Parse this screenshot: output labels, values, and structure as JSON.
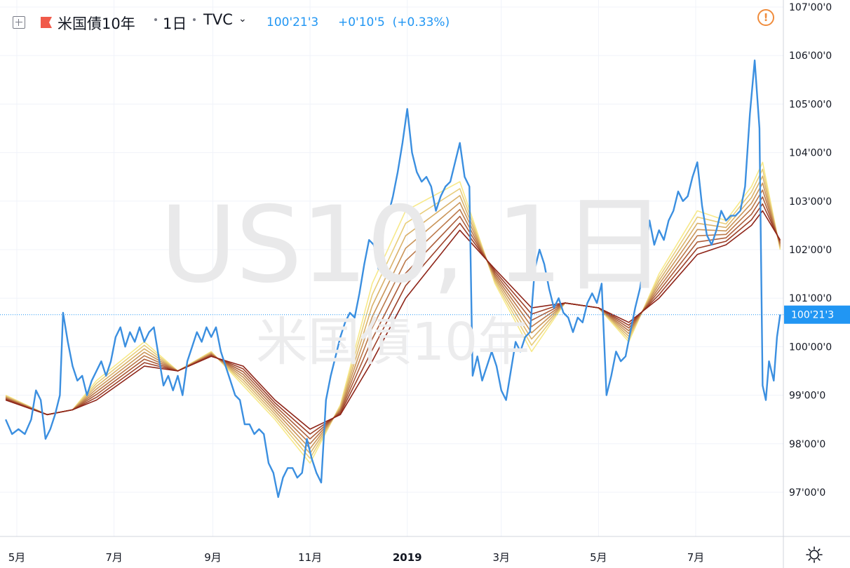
{
  "header": {
    "symbol_name": "米国債10年",
    "interval": "1日",
    "source": "TVC",
    "last_price": "100'21'3",
    "change": "+0'10'5",
    "change_pct": "(+0.33%)"
  },
  "watermark": {
    "line1": "US10, 1日",
    "line2": "米国債10年"
  },
  "colors": {
    "price_line": "#3b8fe0",
    "ribbon_outer": "#f7e98a",
    "ribbon_inner": "#8e2418",
    "alert": "#f08c3c",
    "crosshair": "#2196f3"
  },
  "icons": [
    "add-symbol-icon",
    "flag-icon",
    "chevron-down-icon",
    "alert-icon",
    "settings-gear-icon"
  ],
  "chart_data": {
    "type": "line",
    "title": "米国債10年, 1日",
    "y_axis": {
      "range": [
        96.0,
        107.0
      ],
      "ticks": [
        "107'00'0",
        "106'00'0",
        "105'00'0",
        "104'00'0",
        "103'00'0",
        "102'00'0",
        "101'00'0",
        "100'00'0",
        "99'00'0",
        "98'00'0",
        "97'00'0"
      ],
      "tick_values": [
        107,
        106,
        105,
        104,
        103,
        102,
        101,
        100,
        99,
        98,
        97
      ]
    },
    "x_axis": {
      "ticks": [
        "5月",
        "7月",
        "9月",
        "11月",
        "2019",
        "3月",
        "5月",
        "7月"
      ],
      "tick_dates": [
        "2018-05-01",
        "2018-07-01",
        "2018-09-01",
        "2018-11-01",
        "2019-01-01",
        "2019-03-01",
        "2019-05-01",
        "2019-07-01"
      ],
      "range": [
        "2018-04-24",
        "2019-08-23"
      ]
    },
    "last_price_label": "100'21'3",
    "last_price_value": 100.66,
    "series": [
      {
        "kind": "price",
        "points": [
          [
            "2018-04-24",
            98.5
          ],
          [
            "2018-04-28",
            98.2
          ],
          [
            "2018-05-02",
            98.3
          ],
          [
            "2018-05-06",
            98.2
          ],
          [
            "2018-05-10",
            98.5
          ],
          [
            "2018-05-13",
            99.1
          ],
          [
            "2018-05-16",
            98.9
          ],
          [
            "2018-05-19",
            98.1
          ],
          [
            "2018-05-22",
            98.3
          ],
          [
            "2018-05-25",
            98.6
          ],
          [
            "2018-05-28",
            99.0
          ],
          [
            "2018-05-30",
            100.7
          ],
          [
            "2018-06-02",
            100.1
          ],
          [
            "2018-06-05",
            99.6
          ],
          [
            "2018-06-08",
            99.3
          ],
          [
            "2018-06-11",
            99.4
          ],
          [
            "2018-06-14",
            99.0
          ],
          [
            "2018-06-17",
            99.3
          ],
          [
            "2018-06-20",
            99.5
          ],
          [
            "2018-06-23",
            99.7
          ],
          [
            "2018-06-26",
            99.4
          ],
          [
            "2018-06-29",
            99.7
          ],
          [
            "2018-07-02",
            100.2
          ],
          [
            "2018-07-05",
            100.4
          ],
          [
            "2018-07-08",
            100.0
          ],
          [
            "2018-07-11",
            100.3
          ],
          [
            "2018-07-14",
            100.1
          ],
          [
            "2018-07-17",
            100.4
          ],
          [
            "2018-07-20",
            100.1
          ],
          [
            "2018-07-23",
            100.3
          ],
          [
            "2018-07-26",
            100.4
          ],
          [
            "2018-07-29",
            99.8
          ],
          [
            "2018-08-01",
            99.2
          ],
          [
            "2018-08-04",
            99.4
          ],
          [
            "2018-08-07",
            99.1
          ],
          [
            "2018-08-10",
            99.4
          ],
          [
            "2018-08-13",
            99.0
          ],
          [
            "2018-08-16",
            99.7
          ],
          [
            "2018-08-19",
            100.0
          ],
          [
            "2018-08-22",
            100.3
          ],
          [
            "2018-08-25",
            100.1
          ],
          [
            "2018-08-28",
            100.4
          ],
          [
            "2018-08-31",
            100.2
          ],
          [
            "2018-09-03",
            100.4
          ],
          [
            "2018-09-06",
            99.9
          ],
          [
            "2018-09-09",
            99.6
          ],
          [
            "2018-09-12",
            99.3
          ],
          [
            "2018-09-15",
            99.0
          ],
          [
            "2018-09-18",
            98.9
          ],
          [
            "2018-09-21",
            98.4
          ],
          [
            "2018-09-24",
            98.4
          ],
          [
            "2018-09-27",
            98.2
          ],
          [
            "2018-09-30",
            98.3
          ],
          [
            "2018-10-03",
            98.2
          ],
          [
            "2018-10-06",
            97.6
          ],
          [
            "2018-10-09",
            97.4
          ],
          [
            "2018-10-12",
            96.9
          ],
          [
            "2018-10-15",
            97.3
          ],
          [
            "2018-10-18",
            97.5
          ],
          [
            "2018-10-21",
            97.5
          ],
          [
            "2018-10-24",
            97.3
          ],
          [
            "2018-10-27",
            97.4
          ],
          [
            "2018-10-30",
            98.1
          ],
          [
            "2018-11-02",
            97.7
          ],
          [
            "2018-11-05",
            97.4
          ],
          [
            "2018-11-08",
            97.2
          ],
          [
            "2018-11-11",
            98.9
          ],
          [
            "2018-11-14",
            99.4
          ],
          [
            "2018-11-17",
            99.8
          ],
          [
            "2018-11-20",
            100.2
          ],
          [
            "2018-11-23",
            100.5
          ],
          [
            "2018-11-26",
            100.7
          ],
          [
            "2018-11-29",
            100.6
          ],
          [
            "2018-12-02",
            101.1
          ],
          [
            "2018-12-05",
            101.7
          ],
          [
            "2018-12-08",
            102.2
          ],
          [
            "2018-12-11",
            102.1
          ],
          [
            "2018-12-14",
            101.6
          ],
          [
            "2018-12-17",
            102.5
          ],
          [
            "2018-12-20",
            102.7
          ],
          [
            "2018-12-23",
            103.1
          ],
          [
            "2018-12-26",
            103.6
          ],
          [
            "2018-12-29",
            104.2
          ],
          [
            "2019-01-01",
            104.9
          ],
          [
            "2019-01-04",
            104.0
          ],
          [
            "2019-01-07",
            103.6
          ],
          [
            "2019-01-10",
            103.4
          ],
          [
            "2019-01-13",
            103.5
          ],
          [
            "2019-01-16",
            103.3
          ],
          [
            "2019-01-19",
            102.8
          ],
          [
            "2019-01-22",
            103.1
          ],
          [
            "2019-01-25",
            103.3
          ],
          [
            "2019-01-28",
            103.4
          ],
          [
            "2019-01-31",
            103.8
          ],
          [
            "2019-02-03",
            104.2
          ],
          [
            "2019-02-06",
            103.5
          ],
          [
            "2019-02-09",
            103.3
          ],
          [
            "2019-02-11",
            99.4
          ],
          [
            "2019-02-14",
            99.8
          ],
          [
            "2019-02-17",
            99.3
          ],
          [
            "2019-02-20",
            99.6
          ],
          [
            "2019-02-23",
            99.9
          ],
          [
            "2019-02-26",
            99.6
          ],
          [
            "2019-03-01",
            99.1
          ],
          [
            "2019-03-04",
            98.9
          ],
          [
            "2019-03-07",
            99.5
          ],
          [
            "2019-03-10",
            100.1
          ],
          [
            "2019-03-13",
            99.9
          ],
          [
            "2019-03-16",
            100.2
          ],
          [
            "2019-03-19",
            100.3
          ],
          [
            "2019-03-22",
            101.6
          ],
          [
            "2019-03-25",
            102.0
          ],
          [
            "2019-03-28",
            101.7
          ],
          [
            "2019-03-31",
            101.2
          ],
          [
            "2019-04-03",
            100.8
          ],
          [
            "2019-04-06",
            101.0
          ],
          [
            "2019-04-09",
            100.7
          ],
          [
            "2019-04-12",
            100.6
          ],
          [
            "2019-04-15",
            100.3
          ],
          [
            "2019-04-18",
            100.6
          ],
          [
            "2019-04-21",
            100.5
          ],
          [
            "2019-04-24",
            100.9
          ],
          [
            "2019-04-27",
            101.1
          ],
          [
            "2019-04-30",
            100.9
          ],
          [
            "2019-05-03",
            101.3
          ],
          [
            "2019-05-06",
            99.0
          ],
          [
            "2019-05-09",
            99.4
          ],
          [
            "2019-05-12",
            99.9
          ],
          [
            "2019-05-15",
            99.7
          ],
          [
            "2019-05-18",
            99.8
          ],
          [
            "2019-05-21",
            100.3
          ],
          [
            "2019-05-24",
            100.8
          ],
          [
            "2019-05-27",
            101.2
          ],
          [
            "2019-05-30",
            101.8
          ],
          [
            "2019-06-02",
            102.6
          ],
          [
            "2019-06-05",
            102.1
          ],
          [
            "2019-06-08",
            102.4
          ],
          [
            "2019-06-11",
            102.2
          ],
          [
            "2019-06-14",
            102.6
          ],
          [
            "2019-06-17",
            102.8
          ],
          [
            "2019-06-20",
            103.2
          ],
          [
            "2019-06-23",
            103.0
          ],
          [
            "2019-06-26",
            103.1
          ],
          [
            "2019-06-29",
            103.5
          ],
          [
            "2019-07-02",
            103.8
          ],
          [
            "2019-07-05",
            102.9
          ],
          [
            "2019-07-08",
            102.3
          ],
          [
            "2019-07-11",
            102.1
          ],
          [
            "2019-07-14",
            102.4
          ],
          [
            "2019-07-17",
            102.8
          ],
          [
            "2019-07-20",
            102.6
          ],
          [
            "2019-07-23",
            102.7
          ],
          [
            "2019-07-26",
            102.7
          ],
          [
            "2019-07-29",
            102.8
          ],
          [
            "2019-08-01",
            103.3
          ],
          [
            "2019-08-04",
            104.8
          ],
          [
            "2019-08-07",
            105.9
          ],
          [
            "2019-08-10",
            104.5
          ],
          [
            "2019-08-12",
            99.2
          ],
          [
            "2019-08-14",
            98.9
          ],
          [
            "2019-08-16",
            99.7
          ],
          [
            "2019-08-19",
            99.3
          ],
          [
            "2019-08-21",
            100.2
          ],
          [
            "2019-08-23",
            100.66
          ]
        ]
      },
      {
        "kind": "ribbon-outer",
        "points": [
          [
            "2018-04-24",
            99.0
          ],
          [
            "2018-05-20",
            98.6
          ],
          [
            "2018-06-05",
            98.7
          ],
          [
            "2018-06-20",
            99.3
          ],
          [
            "2018-07-20",
            100.1
          ],
          [
            "2018-08-10",
            99.5
          ],
          [
            "2018-08-31",
            99.9
          ],
          [
            "2018-09-20",
            99.2
          ],
          [
            "2018-10-10",
            98.5
          ],
          [
            "2018-11-01",
            97.6
          ],
          [
            "2018-11-20",
            98.8
          ],
          [
            "2018-12-10",
            101.3
          ],
          [
            "2018-12-31",
            102.8
          ],
          [
            "2019-02-03",
            103.4
          ],
          [
            "2019-02-25",
            101.3
          ],
          [
            "2019-03-20",
            99.9
          ],
          [
            "2019-04-10",
            100.9
          ],
          [
            "2019-05-01",
            100.8
          ],
          [
            "2019-05-20",
            100.1
          ],
          [
            "2019-06-08",
            101.5
          ],
          [
            "2019-07-02",
            102.8
          ],
          [
            "2019-07-20",
            102.6
          ],
          [
            "2019-08-05",
            103.3
          ],
          [
            "2019-08-12",
            103.8
          ],
          [
            "2019-08-23",
            102.0
          ]
        ]
      },
      {
        "kind": "ribbon-inner",
        "points": [
          [
            "2018-04-24",
            98.9
          ],
          [
            "2018-05-20",
            98.6
          ],
          [
            "2018-06-05",
            98.7
          ],
          [
            "2018-06-20",
            98.9
          ],
          [
            "2018-07-20",
            99.6
          ],
          [
            "2018-08-10",
            99.5
          ],
          [
            "2018-08-31",
            99.8
          ],
          [
            "2018-09-20",
            99.6
          ],
          [
            "2018-10-10",
            98.9
          ],
          [
            "2018-11-01",
            98.3
          ],
          [
            "2018-11-20",
            98.6
          ],
          [
            "2018-12-10",
            99.7
          ],
          [
            "2018-12-31",
            101.0
          ],
          [
            "2019-02-03",
            102.4
          ],
          [
            "2019-02-25",
            101.6
          ],
          [
            "2019-03-20",
            100.8
          ],
          [
            "2019-04-10",
            100.9
          ],
          [
            "2019-05-01",
            100.8
          ],
          [
            "2019-05-20",
            100.5
          ],
          [
            "2019-06-08",
            101.0
          ],
          [
            "2019-07-02",
            101.9
          ],
          [
            "2019-07-20",
            102.1
          ],
          [
            "2019-08-05",
            102.5
          ],
          [
            "2019-08-12",
            102.8
          ],
          [
            "2019-08-23",
            102.2
          ]
        ]
      }
    ],
    "ribbon_count": 8,
    "grid": true
  }
}
